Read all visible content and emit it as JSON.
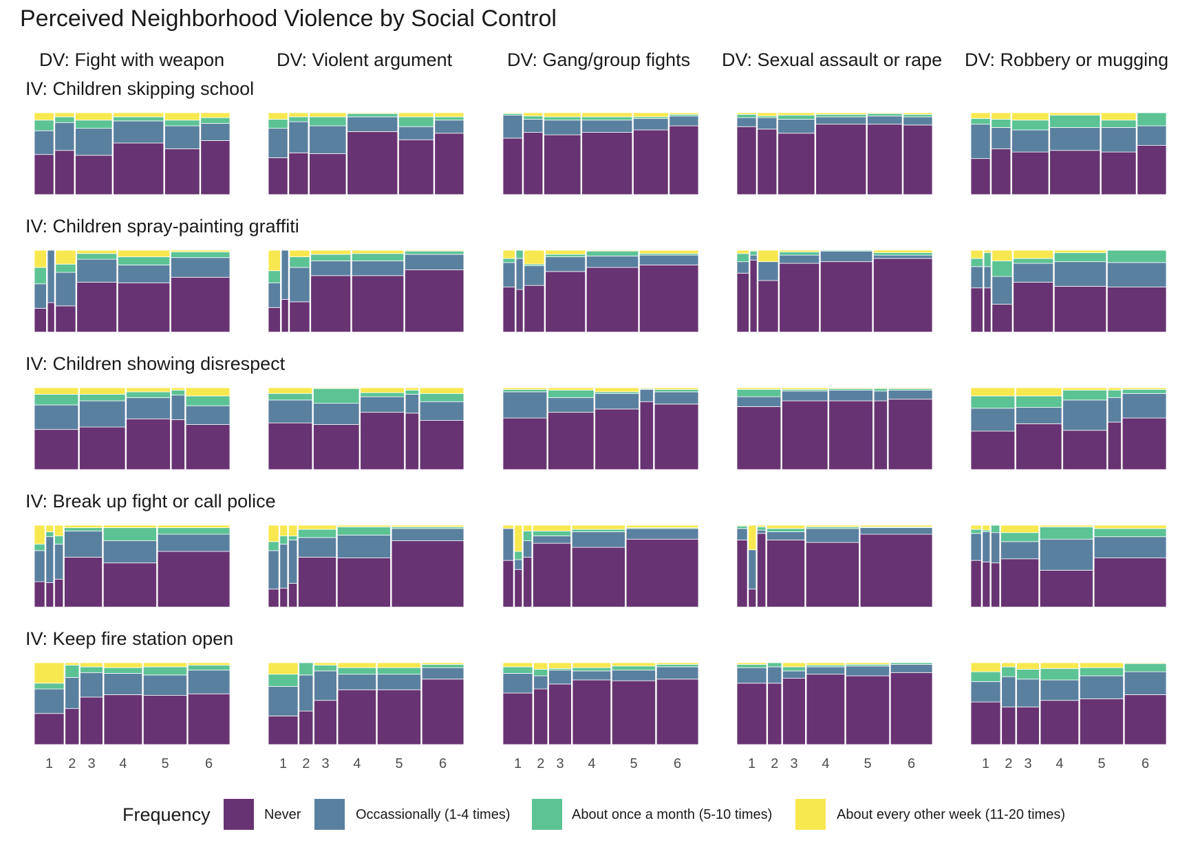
{
  "chart_data": {
    "type": "mosaic",
    "title": "Perceived Neighborhood Violence by Social Control",
    "col_prefix": "DV: ",
    "row_prefix": "IV: ",
    "dvs": [
      "Fight with weapon",
      "Violent argument",
      "Gang/group fights",
      "Sexual assault or rape",
      "Robbery or mugging"
    ],
    "ivs": [
      "Children skipping school",
      "Children spray-painting graffiti",
      "Children showing disrespect",
      "Break up fight or call police",
      "Keep fire station open"
    ],
    "x_ticks": [
      "1",
      "2",
      "3",
      "4",
      "5",
      "6"
    ],
    "legend_title": "Frequency",
    "levels": [
      "Never",
      "Occassionally (1-4 times)",
      "About once a month (5-10 times)",
      "About every other week (11-20 times)"
    ],
    "colors": [
      "#683372",
      "#5a80a0",
      "#5cc395",
      "#f8e84f"
    ],
    "column_widths": [
      [
        0.1,
        0.1,
        0.19,
        0.26,
        0.18,
        0.15
      ],
      [
        0.062,
        0.036,
        0.104,
        0.206,
        0.268,
        0.304
      ],
      [
        0.23,
        0.24,
        0.23,
        0.07,
        0.23,
        0.0
      ],
      [
        0.055,
        0.04,
        0.045,
        0.2,
        0.28,
        0.38
      ],
      [
        0.17,
        0.08,
        0.13,
        0.22,
        0.25,
        0.24
      ]
    ],
    "panels": [
      [
        [
          [
            0.49,
            0.29,
            0.13,
            0.09
          ],
          [
            0.54,
            0.34,
            0.07,
            0.05
          ],
          [
            0.48,
            0.33,
            0.1,
            0.09
          ],
          [
            0.63,
            0.27,
            0.05,
            0.05
          ],
          [
            0.56,
            0.28,
            0.07,
            0.09
          ],
          [
            0.66,
            0.21,
            0.07,
            0.06
          ]
        ],
        [
          [
            0.45,
            0.36,
            0.11,
            0.08
          ],
          [
            0.51,
            0.38,
            0.06,
            0.05
          ],
          [
            0.5,
            0.34,
            0.11,
            0.05
          ],
          [
            0.77,
            0.18,
            0.04,
            0.01
          ],
          [
            0.67,
            0.16,
            0.12,
            0.05
          ],
          [
            0.75,
            0.16,
            0.04,
            0.05
          ]
        ],
        [
          [
            0.69,
            0.28,
            0.02,
            0.01
          ],
          [
            0.76,
            0.16,
            0.04,
            0.04
          ],
          [
            0.73,
            0.18,
            0.04,
            0.05
          ],
          [
            0.76,
            0.15,
            0.04,
            0.05
          ],
          [
            0.79,
            0.14,
            0.02,
            0.05
          ],
          [
            0.84,
            0.12,
            0.02,
            0.02
          ]
        ],
        [
          [
            0.83,
            0.11,
            0.04,
            0.02
          ],
          [
            0.8,
            0.14,
            0.02,
            0.04
          ],
          [
            0.75,
            0.17,
            0.05,
            0.03
          ],
          [
            0.86,
            0.09,
            0.03,
            0.02
          ],
          [
            0.86,
            0.1,
            0.03,
            0.01
          ],
          [
            0.85,
            0.1,
            0.03,
            0.02
          ]
        ],
        [
          [
            0.44,
            0.42,
            0.07,
            0.07
          ],
          [
            0.56,
            0.26,
            0.1,
            0.08
          ],
          [
            0.52,
            0.27,
            0.12,
            0.09
          ],
          [
            0.54,
            0.28,
            0.15,
            0.03
          ],
          [
            0.52,
            0.3,
            0.09,
            0.09
          ],
          [
            0.6,
            0.24,
            0.16,
            0.0
          ]
        ]
      ],
      [
        [
          [
            0.29,
            0.3,
            0.2,
            0.21
          ],
          [
            0.36,
            0.64,
            0.0,
            0.0
          ],
          [
            0.32,
            0.41,
            0.1,
            0.17
          ],
          [
            0.61,
            0.28,
            0.07,
            0.04
          ],
          [
            0.6,
            0.22,
            0.1,
            0.08
          ],
          [
            0.67,
            0.24,
            0.07,
            0.02
          ]
        ],
        [
          [
            0.3,
            0.3,
            0.15,
            0.25
          ],
          [
            0.4,
            0.6,
            0.0,
            0.0
          ],
          [
            0.37,
            0.42,
            0.13,
            0.08
          ],
          [
            0.69,
            0.18,
            0.08,
            0.05
          ],
          [
            0.69,
            0.18,
            0.09,
            0.04
          ],
          [
            0.76,
            0.19,
            0.04,
            0.01
          ]
        ],
        [
          [
            0.55,
            0.3,
            0.05,
            0.1
          ],
          [
            0.52,
            0.38,
            0.1,
            0.0
          ],
          [
            0.57,
            0.24,
            0.02,
            0.17
          ],
          [
            0.74,
            0.18,
            0.03,
            0.05
          ],
          [
            0.79,
            0.14,
            0.06,
            0.01
          ],
          [
            0.82,
            0.12,
            0.02,
            0.04
          ]
        ],
        [
          [
            0.72,
            0.14,
            0.1,
            0.04
          ],
          [
            0.88,
            0.06,
            0.05,
            0.01
          ],
          [
            0.63,
            0.23,
            0.0,
            0.14
          ],
          [
            0.84,
            0.1,
            0.04,
            0.02
          ],
          [
            0.86,
            0.13,
            0.01,
            0.0
          ],
          [
            0.9,
            0.04,
            0.03,
            0.03
          ]
        ],
        [
          [
            0.54,
            0.26,
            0.1,
            0.1
          ],
          [
            0.54,
            0.26,
            0.17,
            0.03
          ],
          [
            0.34,
            0.34,
            0.19,
            0.13
          ],
          [
            0.61,
            0.23,
            0.06,
            0.1
          ],
          [
            0.56,
            0.3,
            0.11,
            0.03
          ],
          [
            0.55,
            0.3,
            0.15,
            0.0
          ]
        ]
      ],
      [
        [
          [
            0.49,
            0.3,
            0.13,
            0.08
          ],
          [
            0.52,
            0.32,
            0.08,
            0.08
          ],
          [
            0.62,
            0.26,
            0.07,
            0.05
          ],
          [
            0.61,
            0.3,
            0.06,
            0.03
          ],
          [
            0.55,
            0.23,
            0.12,
            0.1
          ],
          [
            0.64,
            0.33,
            0.01,
            0.02
          ]
        ],
        [
          [
            0.57,
            0.28,
            0.08,
            0.07
          ],
          [
            0.55,
            0.26,
            0.18,
            0.01
          ],
          [
            0.7,
            0.19,
            0.05,
            0.06
          ],
          [
            0.69,
            0.23,
            0.05,
            0.03
          ],
          [
            0.6,
            0.23,
            0.1,
            0.07
          ],
          [
            0.69,
            0.25,
            0.04,
            0.02
          ]
        ],
        [
          [
            0.63,
            0.32,
            0.03,
            0.02
          ],
          [
            0.7,
            0.18,
            0.09,
            0.03
          ],
          [
            0.74,
            0.19,
            0.02,
            0.05
          ],
          [
            0.83,
            0.15,
            0.01,
            0.01
          ],
          [
            0.8,
            0.15,
            0.03,
            0.02
          ],
          [
            0.8,
            0.1,
            0.05,
            0.05
          ]
        ],
        [
          [
            0.77,
            0.12,
            0.09,
            0.02
          ],
          [
            0.84,
            0.12,
            0.02,
            0.02
          ],
          [
            0.84,
            0.13,
            0.02,
            0.01
          ],
          [
            0.84,
            0.12,
            0.03,
            0.01
          ],
          [
            0.86,
            0.11,
            0.02,
            0.01
          ],
          [
            0.88,
            0.06,
            0.01,
            0.05
          ]
        ],
        [
          [
            0.47,
            0.28,
            0.15,
            0.1
          ],
          [
            0.56,
            0.2,
            0.14,
            0.1
          ],
          [
            0.48,
            0.37,
            0.12,
            0.03
          ],
          [
            0.58,
            0.3,
            0.09,
            0.03
          ],
          [
            0.63,
            0.3,
            0.05,
            0.02
          ],
          [
            0.61,
            0.28,
            0.11,
            0.0
          ]
        ]
      ],
      [
        [
          [
            0.31,
            0.38,
            0.08,
            0.23
          ],
          [
            0.3,
            0.56,
            0.06,
            0.08
          ],
          [
            0.34,
            0.43,
            0.1,
            0.13
          ],
          [
            0.61,
            0.32,
            0.04,
            0.03
          ],
          [
            0.54,
            0.27,
            0.16,
            0.03
          ],
          [
            0.68,
            0.21,
            0.08,
            0.03
          ]
        ],
        [
          [
            0.22,
            0.47,
            0.11,
            0.2
          ],
          [
            0.23,
            0.54,
            0.1,
            0.13
          ],
          [
            0.29,
            0.53,
            0.05,
            0.13
          ],
          [
            0.61,
            0.24,
            0.1,
            0.05
          ],
          [
            0.6,
            0.28,
            0.1,
            0.02
          ],
          [
            0.81,
            0.15,
            0.02,
            0.02
          ]
        ],
        [
          [
            0.57,
            0.39,
            0.0,
            0.04
          ],
          [
            0.46,
            0.12,
            0.1,
            0.32
          ],
          [
            0.61,
            0.2,
            0.12,
            0.07
          ],
          [
            0.78,
            0.09,
            0.06,
            0.07
          ],
          [
            0.73,
            0.19,
            0.03,
            0.05
          ],
          [
            0.83,
            0.13,
            0.01,
            0.03
          ]
        ],
        [
          [
            0.82,
            0.14,
            0.03,
            0.01
          ],
          [
            0.22,
            0.48,
            0.0,
            0.3
          ],
          [
            0.9,
            0.04,
            0.04,
            0.02
          ],
          [
            0.82,
            0.1,
            0.04,
            0.04
          ],
          [
            0.79,
            0.17,
            0.02,
            0.02
          ],
          [
            0.89,
            0.08,
            0.01,
            0.02
          ]
        ],
        [
          [
            0.57,
            0.33,
            0.05,
            0.05
          ],
          [
            0.55,
            0.37,
            0.02,
            0.06
          ],
          [
            0.54,
            0.37,
            0.09,
            0.0
          ],
          [
            0.59,
            0.21,
            0.11,
            0.09
          ],
          [
            0.45,
            0.38,
            0.15,
            0.02
          ],
          [
            0.6,
            0.26,
            0.1,
            0.04
          ]
        ]
      ],
      [
        [
          [
            0.38,
            0.3,
            0.07,
            0.25
          ],
          [
            0.44,
            0.38,
            0.15,
            0.03
          ],
          [
            0.58,
            0.3,
            0.07,
            0.05
          ],
          [
            0.61,
            0.26,
            0.07,
            0.06
          ],
          [
            0.6,
            0.25,
            0.1,
            0.05
          ],
          [
            0.62,
            0.29,
            0.06,
            0.03
          ]
        ],
        [
          [
            0.35,
            0.36,
            0.15,
            0.14
          ],
          [
            0.41,
            0.44,
            0.15,
            0.0
          ],
          [
            0.54,
            0.36,
            0.07,
            0.03
          ],
          [
            0.67,
            0.19,
            0.08,
            0.06
          ],
          [
            0.67,
            0.19,
            0.08,
            0.06
          ],
          [
            0.8,
            0.14,
            0.04,
            0.02
          ]
        ],
        [
          [
            0.63,
            0.24,
            0.08,
            0.05
          ],
          [
            0.68,
            0.16,
            0.08,
            0.08
          ],
          [
            0.74,
            0.17,
            0.02,
            0.07
          ],
          [
            0.79,
            0.11,
            0.04,
            0.06
          ],
          [
            0.78,
            0.13,
            0.05,
            0.04
          ],
          [
            0.8,
            0.15,
            0.03,
            0.02
          ]
        ],
        [
          [
            0.75,
            0.19,
            0.04,
            0.02
          ],
          [
            0.75,
            0.2,
            0.05,
            0.0
          ],
          [
            0.81,
            0.09,
            0.05,
            0.05
          ],
          [
            0.86,
            0.09,
            0.02,
            0.03
          ],
          [
            0.84,
            0.12,
            0.02,
            0.02
          ],
          [
            0.88,
            0.1,
            0.02,
            0.0
          ]
        ],
        [
          [
            0.52,
            0.25,
            0.12,
            0.11
          ],
          [
            0.46,
            0.37,
            0.12,
            0.05
          ],
          [
            0.46,
            0.34,
            0.12,
            0.08
          ],
          [
            0.54,
            0.25,
            0.14,
            0.07
          ],
          [
            0.56,
            0.28,
            0.1,
            0.06
          ],
          [
            0.61,
            0.28,
            0.1,
            0.01
          ]
        ]
      ]
    ]
  }
}
